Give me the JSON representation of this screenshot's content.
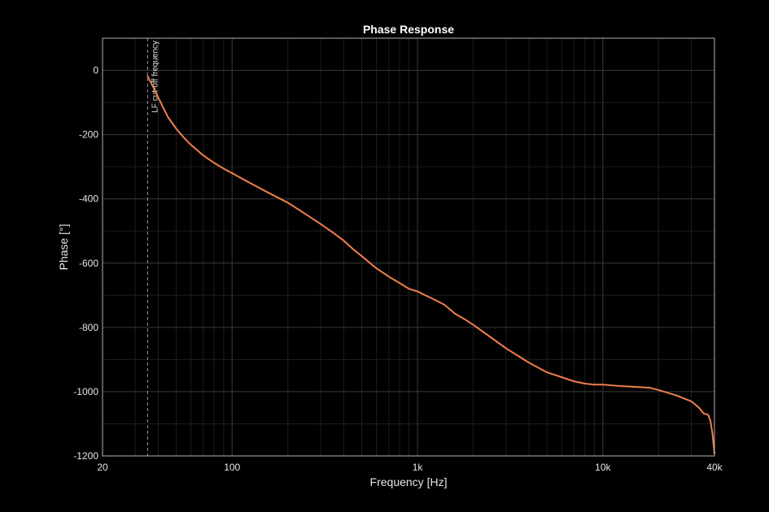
{
  "chart_data": {
    "type": "line",
    "title": "Phase Response",
    "xlabel": "Frequency [Hz]",
    "ylabel": "Phase [°]",
    "x_scale": "log",
    "xlim": [
      20,
      40000
    ],
    "ylim": [
      -1200,
      100
    ],
    "grid": true,
    "x_ticks": [
      {
        "value": 20,
        "label": "20"
      },
      {
        "value": 100,
        "label": "100"
      },
      {
        "value": 1000,
        "label": "1k"
      },
      {
        "value": 10000,
        "label": "10k"
      },
      {
        "value": 40000,
        "label": "40k"
      }
    ],
    "y_ticks": [
      {
        "value": 0,
        "label": "0"
      },
      {
        "value": -200,
        "label": "-200"
      },
      {
        "value": -400,
        "label": "-400"
      },
      {
        "value": -600,
        "label": "-600"
      },
      {
        "value": -800,
        "label": "-800"
      },
      {
        "value": -1000,
        "label": "-1000"
      },
      {
        "value": -1200,
        "label": "-1200"
      }
    ],
    "annotation": {
      "x": 35,
      "label": "LF cut-off frequency"
    },
    "colors": {
      "background": "#000000",
      "axes": "#b4b4b4",
      "grid_major": "#3a3a3a",
      "grid_minor": "#1e1e1e",
      "line": "#f07f4c",
      "annotation": "#9a9a9a"
    },
    "series": [
      {
        "x": [
          35,
          37,
          40,
          45,
          50,
          55,
          60,
          70,
          80,
          90,
          100,
          120,
          150,
          200,
          250,
          300,
          350,
          400,
          450,
          500,
          550,
          600,
          700,
          800,
          900,
          1000,
          1100,
          1200,
          1400,
          1600,
          1800,
          2000,
          2500,
          3000,
          4000,
          5000,
          6000,
          7000,
          8000,
          9000,
          10000,
          12000,
          15000,
          18000,
          20000,
          25000,
          30000,
          33000,
          35000,
          37000,
          38000,
          39000,
          40000
        ],
        "y": [
          -18,
          -45,
          -85,
          -145,
          -182,
          -210,
          -232,
          -265,
          -288,
          -306,
          -320,
          -345,
          -375,
          -412,
          -448,
          -478,
          -505,
          -530,
          -557,
          -578,
          -598,
          -616,
          -642,
          -662,
          -680,
          -688,
          -700,
          -710,
          -730,
          -758,
          -775,
          -792,
          -832,
          -865,
          -910,
          -940,
          -955,
          -968,
          -975,
          -978,
          -978,
          -982,
          -985,
          -988,
          -995,
          -1012,
          -1030,
          -1050,
          -1068,
          -1072,
          -1090,
          -1130,
          -1193
        ]
      }
    ]
  }
}
